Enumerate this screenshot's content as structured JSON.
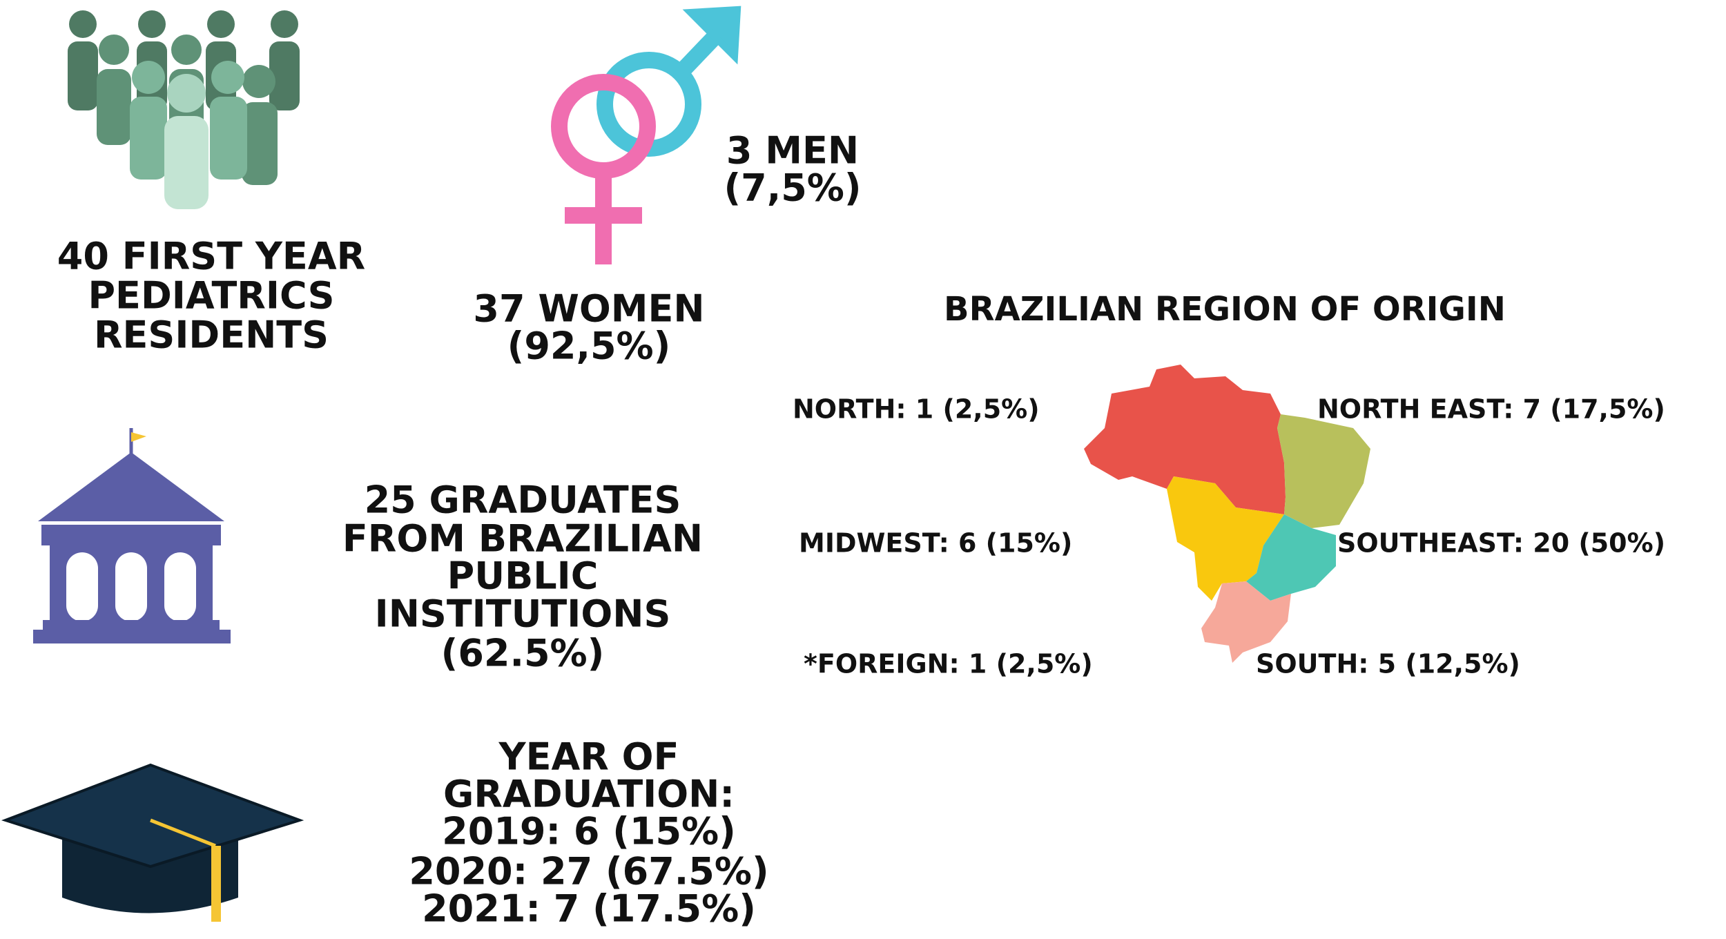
{
  "residents": {
    "lines": [
      "40 FIRST YEAR",
      "PEDIATRICS",
      "RESIDENTS"
    ]
  },
  "gender": {
    "men": [
      "3 MEN",
      "(7,5%)"
    ],
    "women": [
      "37 WOMEN",
      "(92,5%)"
    ]
  },
  "institutions": {
    "lines": [
      "25 GRADUATES",
      "FROM BRAZILIAN",
      "PUBLIC",
      "INSTITUTIONS",
      "(62.5%)"
    ]
  },
  "graduation": {
    "lines": [
      "YEAR OF",
      "GRADUATION:",
      "2019: 6 (15%)",
      "2020: 27 (67.5%)",
      "2021: 7 (17.5%)"
    ]
  },
  "regions": {
    "title": "BRAZILIAN REGION OF ORIGIN",
    "labels": [
      "NORTH: 1 (2,5%)",
      "NORTH EAST: 7 (17,5%)",
      "MIDWEST: 6 (15%)",
      "SOUTHEAST: 20 (50%)",
      "*FOREIGN: 1 (2,5%)",
      "SOUTH: 5 (12,5%)"
    ]
  }
}
